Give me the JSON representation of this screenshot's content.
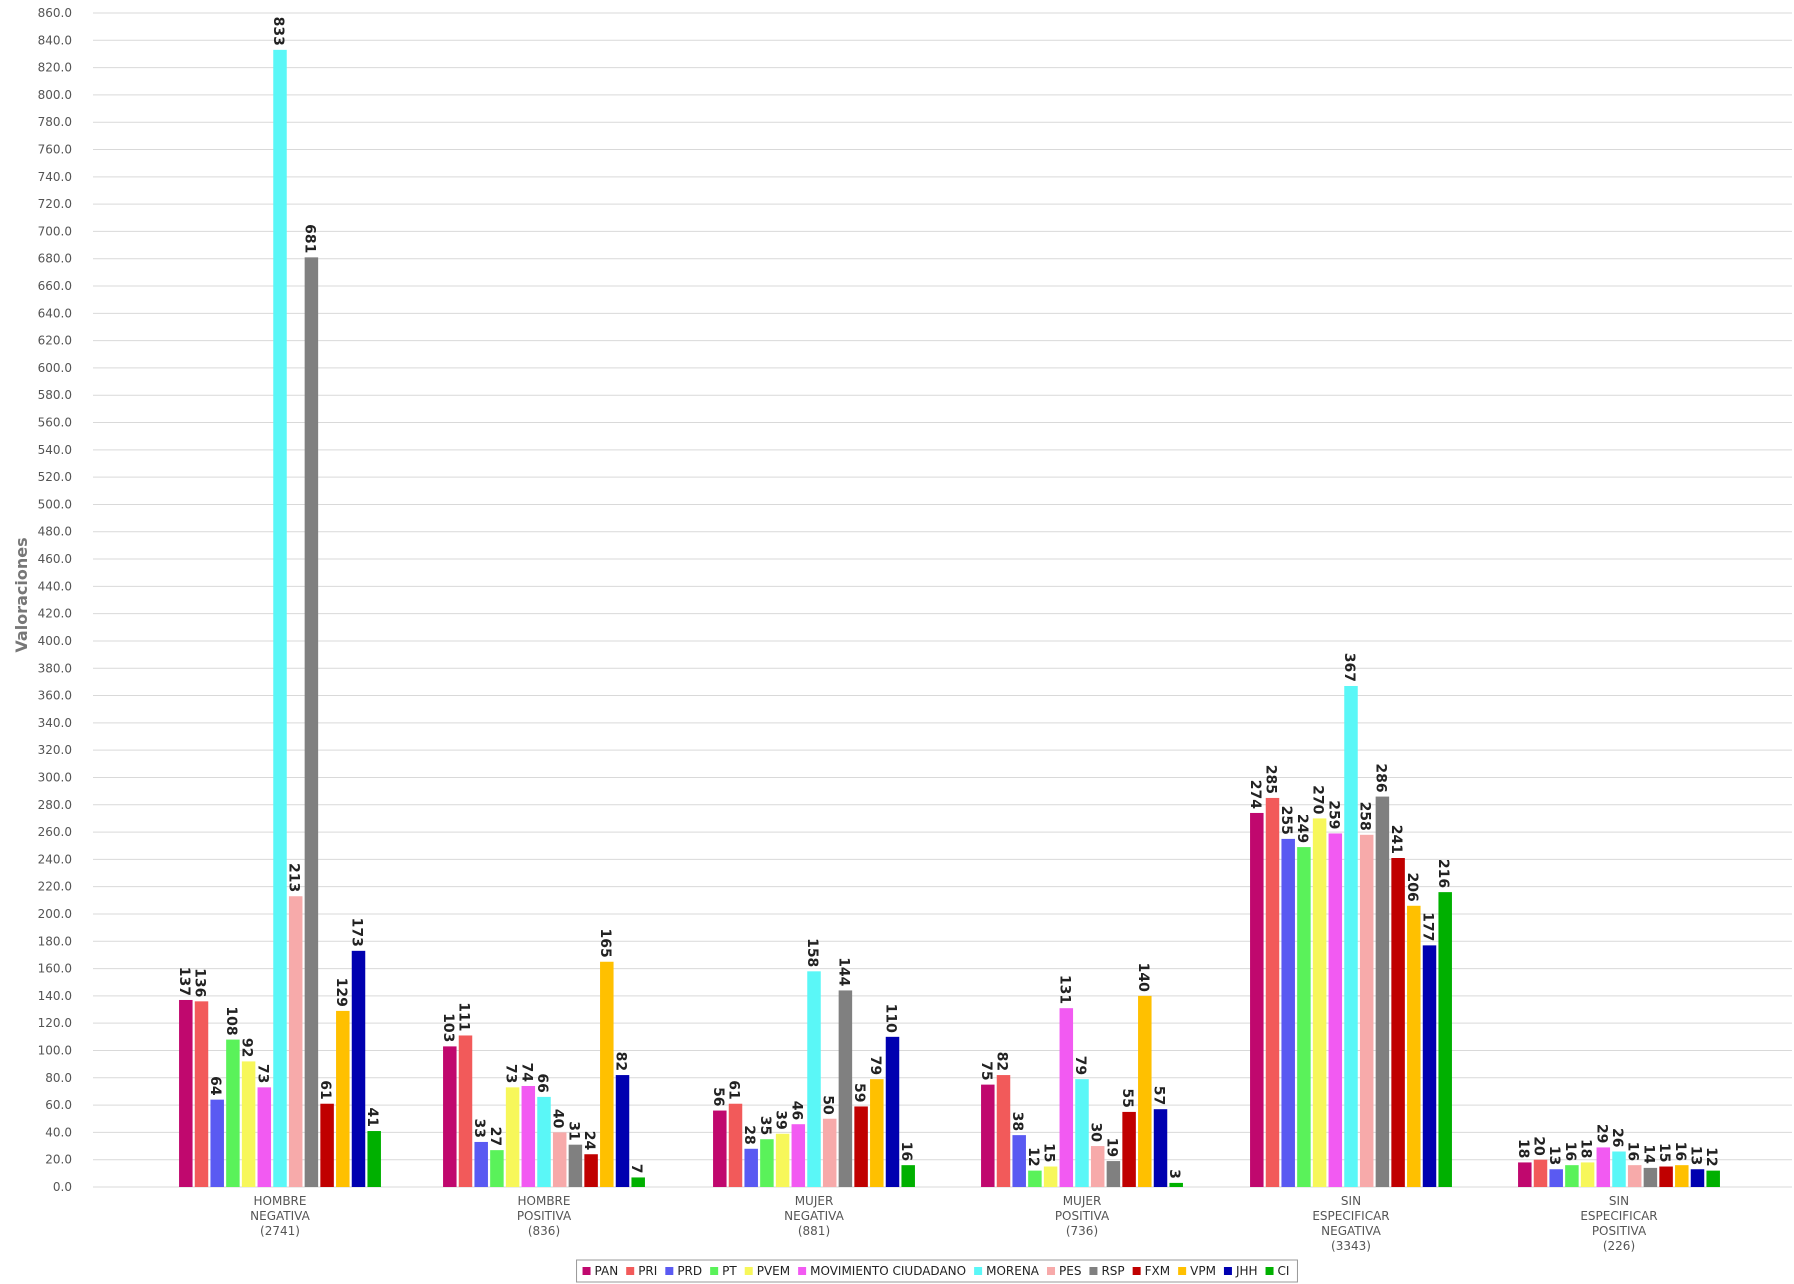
{
  "chart_data": {
    "type": "bar",
    "title": "",
    "xlabel": "",
    "ylabel": "Valoraciones",
    "ylim": [
      0,
      860
    ],
    "ytick_step": 20,
    "ytick_labels": [
      "0.0",
      "20.0",
      "40.0",
      "60.0",
      "80.0",
      "100.0",
      "120.0",
      "140.0",
      "160.0",
      "180.0",
      "200.0",
      "220.0",
      "240.0",
      "260.0",
      "280.0",
      "300.0",
      "320.0",
      "340.0",
      "360.0",
      "380.0",
      "400.0",
      "420.0",
      "440.0",
      "460.0",
      "480.0",
      "500.0",
      "520.0",
      "540.0",
      "560.0",
      "580.0",
      "600.0",
      "620.0",
      "640.0",
      "660.0",
      "680.0",
      "700.0",
      "720.0",
      "740.0",
      "760.0",
      "780.0",
      "800.0",
      "820.0",
      "840.0",
      "860.0"
    ],
    "grid": true,
    "legend_position": "bottom-center",
    "categories": [
      [
        "HOMBRE",
        "NEGATIVA",
        "(2741)"
      ],
      [
        "HOMBRE",
        "POSITIVA",
        "(836)"
      ],
      [
        "MUJER",
        "NEGATIVA",
        "(881)"
      ],
      [
        "MUJER",
        "POSITIVA",
        "(736)"
      ],
      [
        "SIN",
        "ESPECIFICAR",
        "NEGATIVA",
        "(3343)"
      ],
      [
        "SIN",
        "ESPECIFICAR",
        "POSITIVA",
        "(226)"
      ]
    ],
    "series": [
      {
        "name": "PAN",
        "color": "#c0086e",
        "values": [
          137,
          103,
          56,
          75,
          274,
          18
        ]
      },
      {
        "name": "PRI",
        "color": "#f25a5a",
        "values": [
          136,
          111,
          61,
          82,
          285,
          20
        ]
      },
      {
        "name": "PRD",
        "color": "#5a5af2",
        "values": [
          64,
          33,
          28,
          38,
          255,
          13
        ]
      },
      {
        "name": "PT",
        "color": "#5af25a",
        "values": [
          108,
          27,
          35,
          12,
          249,
          16
        ]
      },
      {
        "name": "PVEM",
        "color": "#f7f75a",
        "values": [
          92,
          73,
          39,
          15,
          270,
          18
        ]
      },
      {
        "name": "MOVIMIENTO CIUDADANO",
        "color": "#f25af2",
        "values": [
          73,
          74,
          46,
          131,
          259,
          29
        ]
      },
      {
        "name": "MORENA",
        "color": "#5af7f7",
        "values": [
          833,
          66,
          158,
          79,
          367,
          26
        ]
      },
      {
        "name": "PES",
        "color": "#f7aaaa",
        "values": [
          213,
          40,
          50,
          30,
          258,
          16
        ]
      },
      {
        "name": "RSP",
        "color": "#808080",
        "values": [
          681,
          31,
          144,
          19,
          286,
          14
        ]
      },
      {
        "name": "FXM",
        "color": "#c00000",
        "values": [
          61,
          24,
          59,
          55,
          241,
          15
        ]
      },
      {
        "name": "VPM",
        "color": "#ffc000",
        "values": [
          129,
          165,
          79,
          140,
          206,
          16
        ]
      },
      {
        "name": "JHH",
        "color": "#0000b0",
        "values": [
          173,
          82,
          110,
          57,
          177,
          13
        ]
      },
      {
        "name": "CI",
        "color": "#00b000",
        "values": [
          41,
          7,
          16,
          3,
          216,
          12
        ]
      }
    ]
  }
}
